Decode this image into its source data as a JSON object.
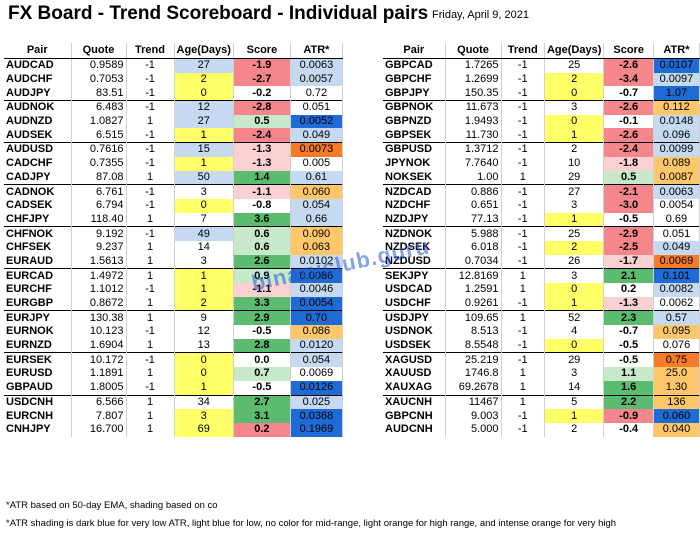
{
  "title": "FX Board - Trend Scoreboard - Individual pairs",
  "date": "Friday, April 9, 2021",
  "headers": {
    "pair": "Pair",
    "quote": "Quote",
    "trend": "Trend",
    "age": "Age(Days)",
    "score": "Score",
    "atr": "ATR*"
  },
  "colors": {
    "age_yellow": "#ffff66",
    "age_blue": "#c5d9f1",
    "score_red_strong": "#f4868c",
    "score_red_light": "#fbd0d2",
    "score_green_strong": "#5bbb6e",
    "score_green_light": "#c6e9c9",
    "atr_dark_blue": "#1f6bd6",
    "atr_light_blue": "#c5d9f1",
    "atr_light_orange": "#ffc769",
    "atr_intense_orange": "#f57b29"
  },
  "left_rows": [
    {
      "pair": "AUDCAD",
      "quote": "0.9589",
      "trend": "-1",
      "age": "27",
      "score": "-1.9",
      "atr": "0.0063",
      "age_c": "b",
      "score_c": "rs",
      "atr_c": "lb",
      "gstart": true
    },
    {
      "pair": "AUDCHF",
      "quote": "0.7053",
      "trend": "-1",
      "age": "2",
      "score": "-2.7",
      "atr": "0.0057",
      "age_c": "y",
      "score_c": "rs",
      "atr_c": "lb"
    },
    {
      "pair": "AUDJPY",
      "quote": "83.51",
      "trend": "-1",
      "age": "0",
      "score": "-0.2",
      "atr": "0.72",
      "age_c": "y",
      "score_c": "",
      "atr_c": ""
    },
    {
      "pair": "AUDNOK",
      "quote": "6.483",
      "trend": "-1",
      "age": "12",
      "score": "-2.8",
      "atr": "0.051",
      "age_c": "b",
      "score_c": "rs",
      "atr_c": "",
      "gstart": true
    },
    {
      "pair": "AUDNZD",
      "quote": "1.0827",
      "trend": "1",
      "age": "27",
      "score": "0.5",
      "atr": "0.0052",
      "age_c": "b",
      "score_c": "gl",
      "atr_c": "db"
    },
    {
      "pair": "AUDSEK",
      "quote": "6.515",
      "trend": "-1",
      "age": "1",
      "score": "-2.4",
      "atr": "0.049",
      "age_c": "y",
      "score_c": "rs",
      "atr_c": "lb"
    },
    {
      "pair": "AUDUSD",
      "quote": "0.7616",
      "trend": "-1",
      "age": "15",
      "score": "-1.3",
      "atr": "0.0073",
      "age_c": "b",
      "score_c": "rl",
      "atr_c": "io",
      "gstart": true
    },
    {
      "pair": "CADCHF",
      "quote": "0.7355",
      "trend": "-1",
      "age": "1",
      "score": "-1.3",
      "atr": "0.005",
      "age_c": "y",
      "score_c": "rl",
      "atr_c": ""
    },
    {
      "pair": "CADJPY",
      "quote": "87.08",
      "trend": "1",
      "age": "50",
      "score": "1.4",
      "atr": "0.61",
      "age_c": "b",
      "score_c": "gs",
      "atr_c": "lb"
    },
    {
      "pair": "CADNOK",
      "quote": "6.761",
      "trend": "-1",
      "age": "3",
      "score": "-1.1",
      "atr": "0.060",
      "age_c": "",
      "score_c": "rl",
      "atr_c": "lo",
      "gstart": true
    },
    {
      "pair": "CADSEK",
      "quote": "6.794",
      "trend": "-1",
      "age": "0",
      "score": "-0.8",
      "atr": "0.054",
      "age_c": "y",
      "score_c": "",
      "atr_c": "lb"
    },
    {
      "pair": "CHFJPY",
      "quote": "118.40",
      "trend": "1",
      "age": "7",
      "score": "3.6",
      "atr": "0.66",
      "age_c": "",
      "score_c": "gs",
      "atr_c": "lb"
    },
    {
      "pair": "CHFNOK",
      "quote": "9.192",
      "trend": "-1",
      "age": "49",
      "score": "0.6",
      "atr": "0.090",
      "age_c": "b",
      "score_c": "gl",
      "atr_c": "lo",
      "gstart": true
    },
    {
      "pair": "CHFSEK",
      "quote": "9.237",
      "trend": "1",
      "age": "14",
      "score": "0.6",
      "atr": "0.063",
      "age_c": "",
      "score_c": "gl",
      "atr_c": "lo"
    },
    {
      "pair": "EURAUD",
      "quote": "1.5613",
      "trend": "1",
      "age": "3",
      "score": "2.6",
      "atr": "0.0102",
      "age_c": "",
      "score_c": "gs",
      "atr_c": "lb"
    },
    {
      "pair": "EURCAD",
      "quote": "1.4972",
      "trend": "1",
      "age": "1",
      "score": "0.9",
      "atr": "0.0086",
      "age_c": "y",
      "score_c": "gl",
      "atr_c": "db",
      "gstart": true
    },
    {
      "pair": "EURCHF",
      "quote": "1.1012",
      "trend": "-1",
      "age": "1",
      "score": "-1.1",
      "atr": "0.0046",
      "age_c": "y",
      "score_c": "rl",
      "atr_c": "lb"
    },
    {
      "pair": "EURGBP",
      "quote": "0.8672",
      "trend": "1",
      "age": "2",
      "score": "3.3",
      "atr": "0.0054",
      "age_c": "y",
      "score_c": "gs",
      "atr_c": "db"
    },
    {
      "pair": "EURJPY",
      "quote": "130.38",
      "trend": "1",
      "age": "9",
      "score": "2.9",
      "atr": "0.70",
      "age_c": "",
      "score_c": "gs",
      "atr_c": "db",
      "gstart": true
    },
    {
      "pair": "EURNOK",
      "quote": "10.123",
      "trend": "-1",
      "age": "12",
      "score": "-0.5",
      "atr": "0.086",
      "age_c": "",
      "score_c": "",
      "atr_c": "lo"
    },
    {
      "pair": "EURNZD",
      "quote": "1.6904",
      "trend": "1",
      "age": "13",
      "score": "2.8",
      "atr": "0.0120",
      "age_c": "",
      "score_c": "gs",
      "atr_c": "lb"
    },
    {
      "pair": "EURSEK",
      "quote": "10.172",
      "trend": "-1",
      "age": "0",
      "score": "0.0",
      "atr": "0.054",
      "age_c": "y",
      "score_c": "",
      "atr_c": "lb",
      "gstart": true
    },
    {
      "pair": "EURUSD",
      "quote": "1.1891",
      "trend": "1",
      "age": "0",
      "score": "0.7",
      "atr": "0.0069",
      "age_c": "y",
      "score_c": "gl",
      "atr_c": ""
    },
    {
      "pair": "GBPAUD",
      "quote": "1.8005",
      "trend": "-1",
      "age": "1",
      "score": "-0.5",
      "atr": "0.0126",
      "age_c": "y",
      "score_c": "",
      "atr_c": "db"
    },
    {
      "pair": "USDCNH",
      "quote": "6.566",
      "trend": "1",
      "age": "34",
      "score": "2.7",
      "atr": "0.025",
      "age_c": "",
      "score_c": "gs",
      "atr_c": "lb",
      "gstart": true
    },
    {
      "pair": "EURCNH",
      "quote": "7.807",
      "trend": "1",
      "age": "3",
      "score": "3.1",
      "atr": "0.0368",
      "age_c": "y",
      "score_c": "gs",
      "atr_c": "db"
    },
    {
      "pair": "CNHJPY",
      "quote": "16.700",
      "trend": "1",
      "age": "69",
      "score": "0.2",
      "atr": "0.1969",
      "age_c": "y",
      "score_c": "rs",
      "atr_c": "db"
    }
  ],
  "right_rows": [
    {
      "pair": "GBPCAD",
      "quote": "1.7265",
      "trend": "-1",
      "age": "25",
      "score": "-2.6",
      "atr": "0.0107",
      "age_c": "",
      "score_c": "rs",
      "atr_c": "db",
      "gstart": true
    },
    {
      "pair": "GBPCHF",
      "quote": "1.2699",
      "trend": "-1",
      "age": "2",
      "score": "-3.4",
      "atr": "0.0097",
      "age_c": "y",
      "score_c": "rs",
      "atr_c": "lb"
    },
    {
      "pair": "GBPJPY",
      "quote": "150.35",
      "trend": "-1",
      "age": "0",
      "score": "-0.7",
      "atr": "1.07",
      "age_c": "y",
      "score_c": "",
      "atr_c": "db"
    },
    {
      "pair": "GBPNOK",
      "quote": "11.673",
      "trend": "-1",
      "age": "3",
      "score": "-2.6",
      "atr": "0.112",
      "age_c": "",
      "score_c": "rs",
      "atr_c": "lo",
      "gstart": true
    },
    {
      "pair": "GBPNZD",
      "quote": "1.9493",
      "trend": "-1",
      "age": "0",
      "score": "-0.1",
      "atr": "0.0148",
      "age_c": "y",
      "score_c": "",
      "atr_c": "lb"
    },
    {
      "pair": "GBPSEK",
      "quote": "11.730",
      "trend": "-1",
      "age": "1",
      "score": "-2.6",
      "atr": "0.096",
      "age_c": "y",
      "score_c": "rs",
      "atr_c": "lb"
    },
    {
      "pair": "GBPUSD",
      "quote": "1.3712",
      "trend": "-1",
      "age": "2",
      "score": "-2.4",
      "atr": "0.0099",
      "age_c": "",
      "score_c": "rs",
      "atr_c": "lb",
      "gstart": true
    },
    {
      "pair": "JPYNOK",
      "quote": "7.7640",
      "trend": "-1",
      "age": "10",
      "score": "-1.8",
      "atr": "0.089",
      "age_c": "",
      "score_c": "rl",
      "atr_c": "lo"
    },
    {
      "pair": "NOKSEK",
      "quote": "1.00",
      "trend": "1",
      "age": "29",
      "score": "0.5",
      "atr": "0.0087",
      "age_c": "",
      "score_c": "gl",
      "atr_c": "lo"
    },
    {
      "pair": "NZDCAD",
      "quote": "0.886",
      "trend": "-1",
      "age": "27",
      "score": "-2.1",
      "atr": "0.0063",
      "age_c": "",
      "score_c": "rs",
      "atr_c": "lb",
      "gstart": true
    },
    {
      "pair": "NZDCHF",
      "quote": "0.651",
      "trend": "-1",
      "age": "3",
      "score": "-3.0",
      "atr": "0.0054",
      "age_c": "",
      "score_c": "rs",
      "atr_c": ""
    },
    {
      "pair": "NZDJPY",
      "quote": "77.13",
      "trend": "-1",
      "age": "1",
      "score": "-0.5",
      "atr": "0.69",
      "age_c": "y",
      "score_c": "",
      "atr_c": ""
    },
    {
      "pair": "NZDNOK",
      "quote": "5.988",
      "trend": "-1",
      "age": "25",
      "score": "-2.9",
      "atr": "0.051",
      "age_c": "",
      "score_c": "rs",
      "atr_c": "",
      "gstart": true
    },
    {
      "pair": "NZDSEK",
      "quote": "6.018",
      "trend": "-1",
      "age": "2",
      "score": "-2.5",
      "atr": "0.049",
      "age_c": "y",
      "score_c": "rs",
      "atr_c": "lb"
    },
    {
      "pair": "NZDUSD",
      "quote": "0.7034",
      "trend": "-1",
      "age": "26",
      "score": "-1.7",
      "atr": "0.0069",
      "age_c": "",
      "score_c": "rl",
      "atr_c": "io"
    },
    {
      "pair": "SEKJPY",
      "quote": "12.8169",
      "trend": "1",
      "age": "3",
      "score": "2.1",
      "atr": "0.101",
      "age_c": "",
      "score_c": "gs",
      "atr_c": "db",
      "gstart": true
    },
    {
      "pair": "USDCAD",
      "quote": "1.2591",
      "trend": "1",
      "age": "0",
      "score": "0.2",
      "atr": "0.0082",
      "age_c": "y",
      "score_c": "",
      "atr_c": "lb"
    },
    {
      "pair": "USDCHF",
      "quote": "0.9261",
      "trend": "-1",
      "age": "1",
      "score": "-1.3",
      "atr": "0.0062",
      "age_c": "y",
      "score_c": "rl",
      "atr_c": ""
    },
    {
      "pair": "USDJPY",
      "quote": "109.65",
      "trend": "1",
      "age": "52",
      "score": "2.3",
      "atr": "0.57",
      "age_c": "",
      "score_c": "gs",
      "atr_c": "lb",
      "gstart": true
    },
    {
      "pair": "USDNOK",
      "quote": "8.513",
      "trend": "-1",
      "age": "4",
      "score": "-0.7",
      "atr": "0.095",
      "age_c": "",
      "score_c": "",
      "atr_c": "lo"
    },
    {
      "pair": "USDSEK",
      "quote": "8.5548",
      "trend": "-1",
      "age": "0",
      "score": "-0.5",
      "atr": "0.076",
      "age_c": "y",
      "score_c": "",
      "atr_c": ""
    },
    {
      "pair": "XAGUSD",
      "quote": "25.219",
      "trend": "-1",
      "age": "29",
      "score": "-0.5",
      "atr": "0.75",
      "age_c": "",
      "score_c": "",
      "atr_c": "io",
      "gstart": true
    },
    {
      "pair": "XAUUSD",
      "quote": "1746.8",
      "trend": "1",
      "age": "3",
      "score": "1.1",
      "atr": "25.0",
      "age_c": "",
      "score_c": "gl",
      "atr_c": "lo"
    },
    {
      "pair": "XAUXAG",
      "quote": "69.2678",
      "trend": "1",
      "age": "14",
      "score": "1.6",
      "atr": "1.30",
      "age_c": "",
      "score_c": "gs",
      "atr_c": "lo"
    },
    {
      "pair": "XAUCNH",
      "quote": "11467",
      "trend": "1",
      "age": "5",
      "score": "2.2",
      "atr": "136",
      "age_c": "",
      "score_c": "gs",
      "atr_c": "lo",
      "gstart": true
    },
    {
      "pair": "GBPCNH",
      "quote": "9.003",
      "trend": "-1",
      "age": "1",
      "score": "-0.9",
      "atr": "0.060",
      "age_c": "y",
      "score_c": "rs",
      "atr_c": "db"
    },
    {
      "pair": "AUDCNH",
      "quote": "5.000",
      "trend": "-1",
      "age": "2",
      "score": "-0.4",
      "atr": "0.040",
      "age_c": "",
      "score_c": "",
      "atr_c": "lo"
    }
  ],
  "watermark": "binaryclub.guru",
  "note1": "*ATR based on 50-day EMA, shading based on co",
  "note2": "*ATR shading is dark blue for very low ATR, light blue for low, no color for mid-range, light orange for high range, and intense orange for very high"
}
